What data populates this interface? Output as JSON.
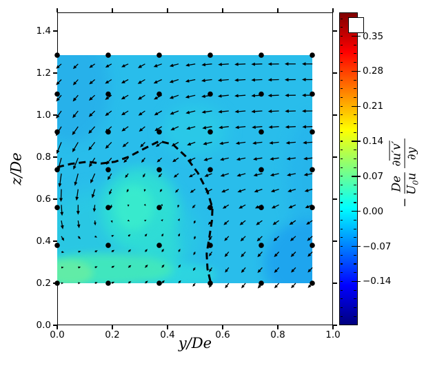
{
  "chart_data": {
    "type": "quiver-contour",
    "xlabel": "y/De",
    "ylabel": "z/De",
    "xlim": [
      0.0,
      1.0
    ],
    "ylim": [
      0.0,
      1.49
    ],
    "xticks": [
      0.0,
      0.2,
      0.4,
      0.6,
      0.8,
      1.0
    ],
    "xtick_labels": [
      "0.0",
      "0.2",
      "0.4",
      "0.6",
      "0.8",
      "1.0"
    ],
    "yticks": [
      0.0,
      0.2,
      0.4,
      0.6,
      0.8,
      1.0,
      1.2,
      1.4
    ],
    "ytick_labels": [
      "0.0",
      "0.2",
      "0.4",
      "0.6",
      "0.8",
      "1.0",
      "1.2",
      "1.4"
    ],
    "field_extent": {
      "x": [
        0.0,
        0.925
      ],
      "z": [
        0.2,
        1.285
      ]
    },
    "colorbar": {
      "colormap": "jet",
      "vmin": -0.2275,
      "vmax": 0.3975,
      "level_step": 0.0175,
      "ticks": [
        0.35,
        0.28,
        0.21,
        0.14,
        0.07,
        0.0,
        -0.07,
        -0.14
      ],
      "tick_labels": [
        "0.35",
        "0.28",
        "0.21",
        "0.14",
        "0.07",
        "0.00",
        "−0.07",
        "−0.14"
      ]
    },
    "cbar_label": {
      "sign": "−",
      "num1": "De",
      "den1_U": "U",
      "den1_sub": "0",
      "den1_bar": "u",
      "num2_d": "∂",
      "num2_bar": "u′v′",
      "den2": "∂y"
    },
    "legend_marker": {
      "shape": "square",
      "fill": "#ffffff"
    },
    "dots": {
      "color": "#000000",
      "x": [
        0.0,
        0.185,
        0.37,
        0.555,
        0.74,
        0.925
      ],
      "z": [
        0.2,
        0.38,
        0.56,
        0.74,
        0.92,
        1.1,
        1.285
      ]
    },
    "fill": {
      "base_color": "#29bdeb",
      "blobs": [
        {
          "cx": 0.05,
          "cz": 1.13,
          "w": 0.28,
          "h": 0.52,
          "color": "#27b0ea",
          "blur": 9,
          "op": 0.9
        },
        {
          "cx": 0.93,
          "cz": 0.7,
          "w": 0.2,
          "h": 0.6,
          "color": "#26b4ec",
          "blur": 10,
          "op": 0.8
        },
        {
          "cx": 0.91,
          "cz": 0.3,
          "w": 0.32,
          "h": 0.4,
          "color": "#1ea4ef",
          "blur": 8,
          "op": 0.95
        },
        {
          "cx": 0.22,
          "cz": 0.42,
          "w": 0.6,
          "h": 0.48,
          "color": "#2bd2dd",
          "blur": 12,
          "op": 0.5
        },
        {
          "cx": 0.5,
          "cz": 0.93,
          "w": 0.24,
          "h": 0.24,
          "color": "#2bd0e6",
          "blur": 10,
          "op": 0.6
        },
        {
          "cx": 0.3,
          "cz": 0.55,
          "w": 0.28,
          "h": 0.4,
          "color": "#30e2d2",
          "blur": 9,
          "op": 0.85
        },
        {
          "cx": 0.28,
          "cz": 0.56,
          "w": 0.14,
          "h": 0.22,
          "color": "#3aeccd",
          "blur": 6,
          "op": 0.9
        },
        {
          "cx": 0.37,
          "cz": 0.36,
          "w": 0.15,
          "h": 0.26,
          "color": "#2fdcd6",
          "blur": 8,
          "op": 0.8
        },
        {
          "cx": 0.45,
          "cz": 0.24,
          "w": 0.26,
          "h": 0.11,
          "color": "#2edade",
          "blur": 6,
          "op": 0.8
        },
        {
          "cx": 0.17,
          "cz": 0.265,
          "w": 0.5,
          "h": 0.15,
          "color": "#42e8bc",
          "blur": 6,
          "op": 0.95
        },
        {
          "cx": 0.04,
          "cz": 0.25,
          "w": 0.18,
          "h": 0.12,
          "color": "#63eda6",
          "blur": 5,
          "op": 0.95
        }
      ]
    },
    "dashed_contour": [
      [
        0.0,
        0.752
      ],
      [
        0.05,
        0.768
      ],
      [
        0.11,
        0.778
      ],
      [
        0.16,
        0.77
      ],
      [
        0.21,
        0.778
      ],
      [
        0.26,
        0.802
      ],
      [
        0.315,
        0.84
      ],
      [
        0.37,
        0.876
      ],
      [
        0.42,
        0.86
      ],
      [
        0.465,
        0.805
      ],
      [
        0.51,
        0.725
      ],
      [
        0.545,
        0.635
      ],
      [
        0.563,
        0.558
      ],
      [
        0.561,
        0.498
      ],
      [
        0.553,
        0.43
      ],
      [
        0.542,
        0.34
      ],
      [
        0.545,
        0.268
      ],
      [
        0.557,
        0.2
      ]
    ],
    "quiver": {
      "x0": 0.015,
      "dx": 0.0607,
      "z_top": 1.2434,
      "dz": 0.07453,
      "rows": [
        {
          "a": [
            222,
            225,
            215,
            210,
            205,
            210,
            200,
            195,
            190,
            186,
            184,
            183,
            182,
            181,
            180,
            180
          ],
          "l": [
            0.026,
            0.026,
            0.025,
            0.026,
            0.028,
            0.03,
            0.032,
            0.034,
            0.036,
            0.038,
            0.039,
            0.04,
            0.04,
            0.04,
            0.04,
            0.038
          ]
        },
        {
          "a": [
            226,
            228,
            220,
            212,
            208,
            210,
            205,
            198,
            192,
            187,
            185,
            184,
            183,
            182,
            181,
            180
          ],
          "l": [
            0.028,
            0.028,
            0.027,
            0.028,
            0.029,
            0.031,
            0.033,
            0.035,
            0.037,
            0.039,
            0.04,
            0.04,
            0.04,
            0.04,
            0.04,
            0.038
          ]
        },
        {
          "a": [
            230,
            230,
            222,
            215,
            210,
            212,
            208,
            200,
            193,
            188,
            186,
            184,
            183,
            182,
            181,
            180
          ],
          "l": [
            0.03,
            0.03,
            0.029,
            0.029,
            0.03,
            0.031,
            0.033,
            0.035,
            0.037,
            0.039,
            0.04,
            0.04,
            0.04,
            0.04,
            0.039,
            0.038
          ]
        },
        {
          "a": [
            235,
            232,
            225,
            218,
            212,
            215,
            210,
            202,
            194,
            189,
            186,
            185,
            184,
            183,
            182,
            181
          ],
          "l": [
            0.034,
            0.033,
            0.031,
            0.03,
            0.03,
            0.03,
            0.032,
            0.034,
            0.036,
            0.038,
            0.039,
            0.039,
            0.04,
            0.04,
            0.039,
            0.038
          ]
        },
        {
          "a": [
            240,
            235,
            228,
            222,
            215,
            220,
            212,
            205,
            196,
            190,
            187,
            186,
            185,
            184,
            183,
            182
          ],
          "l": [
            0.04,
            0.038,
            0.035,
            0.032,
            0.03,
            0.029,
            0.031,
            0.032,
            0.034,
            0.036,
            0.037,
            0.038,
            0.038,
            0.038,
            0.038,
            0.037
          ]
        },
        {
          "a": [
            248,
            240,
            232,
            226,
            220,
            226,
            218,
            210,
            200,
            193,
            190,
            188,
            187,
            186,
            185,
            184
          ],
          "l": [
            0.046,
            0.042,
            0.038,
            0.033,
            0.028,
            0.026,
            0.028,
            0.03,
            0.032,
            0.034,
            0.035,
            0.036,
            0.036,
            0.036,
            0.036,
            0.035
          ]
        },
        {
          "a": [
            255,
            248,
            238,
            231,
            226,
            232,
            222,
            215,
            205,
            197,
            194,
            192,
            190,
            189,
            188,
            187
          ],
          "l": [
            0.05,
            0.046,
            0.04,
            0.032,
            0.025,
            0.022,
            0.024,
            0.027,
            0.03,
            0.032,
            0.033,
            0.034,
            0.034,
            0.034,
            0.034,
            0.033
          ]
        },
        {
          "a": [
            262,
            255,
            246,
            238,
            233,
            240,
            228,
            220,
            210,
            202,
            198,
            196,
            194,
            193,
            192,
            191
          ],
          "l": [
            0.05,
            0.046,
            0.039,
            0.028,
            0.02,
            0.017,
            0.019,
            0.023,
            0.027,
            0.03,
            0.032,
            0.033,
            0.033,
            0.033,
            0.033,
            0.032
          ]
        },
        {
          "a": [
            268,
            262,
            253,
            246,
            242,
            252,
            236,
            226,
            215,
            207,
            203,
            200,
            199,
            198,
            197,
            196
          ],
          "l": [
            0.046,
            0.042,
            0.034,
            0.022,
            0.013,
            0.01,
            0.013,
            0.018,
            0.023,
            0.027,
            0.029,
            0.031,
            0.031,
            0.031,
            0.031,
            0.03
          ]
        },
        {
          "a": [
            274,
            270,
            264,
            258,
            268,
            300,
            310,
            255,
            228,
            216,
            211,
            208,
            206,
            205,
            204,
            203
          ],
          "l": [
            0.04,
            0.036,
            0.026,
            0.014,
            0.007,
            0.005,
            0.006,
            0.011,
            0.017,
            0.023,
            0.026,
            0.028,
            0.029,
            0.03,
            0.029,
            0.029
          ]
        },
        {
          "a": [
            280,
            278,
            276,
            290,
            330,
            30,
            45,
            60,
            245,
            228,
            221,
            218,
            216,
            215,
            214,
            213
          ],
          "l": [
            0.032,
            0.028,
            0.018,
            0.009,
            0.006,
            0.006,
            0.007,
            0.009,
            0.013,
            0.021,
            0.025,
            0.027,
            0.028,
            0.028,
            0.028,
            0.027
          ]
        },
        {
          "a": [
            300,
            310,
            330,
            25,
            42,
            52,
            58,
            64,
            250,
            232,
            227,
            225,
            224,
            223,
            222,
            221
          ],
          "l": [
            0.02,
            0.014,
            0.01,
            0.01,
            0.011,
            0.012,
            0.012,
            0.012,
            0.013,
            0.02,
            0.024,
            0.026,
            0.027,
            0.027,
            0.027,
            0.026
          ]
        },
        {
          "a": [
            350,
            15,
            28,
            35,
            44,
            50,
            55,
            60,
            240,
            235,
            231,
            229,
            228,
            227,
            226,
            225
          ],
          "l": [
            0.011,
            0.011,
            0.012,
            0.013,
            0.014,
            0.014,
            0.014,
            0.013,
            0.014,
            0.02,
            0.024,
            0.026,
            0.026,
            0.026,
            0.026,
            0.025
          ]
        },
        {
          "a": [
            8,
            14,
            24,
            31,
            40,
            45,
            50,
            55,
            236,
            237,
            233,
            231,
            229,
            228,
            227,
            226
          ],
          "l": [
            0.009,
            0.01,
            0.011,
            0.013,
            0.014,
            0.015,
            0.015,
            0.014,
            0.015,
            0.02,
            0.023,
            0.025,
            0.026,
            0.026,
            0.025,
            0.025
          ]
        },
        {
          "a": [
            4,
            10,
            18,
            26,
            34,
            40,
            45,
            50,
            232,
            236,
            233,
            231,
            229,
            228,
            227,
            226
          ],
          "l": [
            0.008,
            0.009,
            0.011,
            0.012,
            0.013,
            0.014,
            0.015,
            0.014,
            0.016,
            0.02,
            0.023,
            0.024,
            0.025,
            0.025,
            0.025,
            0.024
          ]
        }
      ]
    }
  }
}
